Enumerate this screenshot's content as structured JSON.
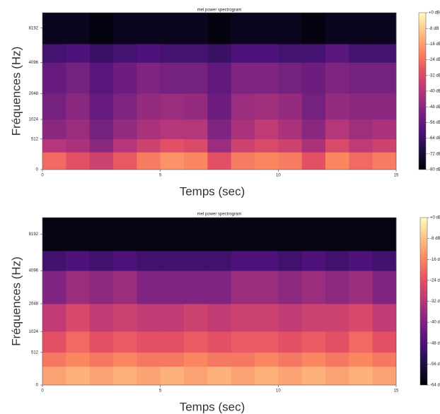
{
  "chart_data": [
    {
      "type": "heatmap",
      "title": "mel power spectrogram",
      "xlabel": "Temps (sec)",
      "ylabel": "Fréquences (Hz)",
      "x": [
        0,
        1,
        2,
        3,
        4,
        5,
        6,
        7,
        8,
        9,
        10,
        11,
        12,
        13,
        14,
        15
      ],
      "y": [
        0,
        256,
        512,
        1024,
        2048,
        4096,
        6000,
        11025
      ],
      "values": [
        [
          -25,
          -30,
          -35,
          -28,
          -22,
          -18,
          -20,
          -30,
          -22,
          -20,
          -22,
          -30,
          -20,
          -25,
          -22
        ],
        [
          -40,
          -42,
          -48,
          -40,
          -35,
          -30,
          -32,
          -45,
          -35,
          -32,
          -35,
          -42,
          -32,
          -38,
          -35
        ],
        [
          -48,
          -45,
          -52,
          -46,
          -42,
          -40,
          -40,
          -50,
          -42,
          -38,
          -42,
          -48,
          -40,
          -44,
          -42
        ],
        [
          -52,
          -48,
          -55,
          -50,
          -46,
          -45,
          -46,
          -54,
          -45,
          -44,
          -46,
          -52,
          -46,
          -48,
          -48
        ],
        [
          -55,
          -52,
          -58,
          -54,
          -50,
          -52,
          -52,
          -56,
          -50,
          -50,
          -52,
          -54,
          -50,
          -52,
          -52
        ],
        [
          -62,
          -60,
          -64,
          -62,
          -60,
          -62,
          -62,
          -64,
          -60,
          -60,
          -62,
          -62,
          -58,
          -62,
          -62
        ],
        [
          -76,
          -76,
          -78,
          -76,
          -76,
          -76,
          -76,
          -78,
          -76,
          -76,
          -76,
          -78,
          -76,
          -76,
          -76
        ]
      ],
      "xlim": [
        0,
        15
      ],
      "xticks": [
        0,
        5,
        10,
        15
      ],
      "ylim": [
        0,
        11025
      ],
      "yticks": [
        0,
        512,
        1024,
        2048,
        4096,
        8192
      ],
      "yscale": "mel",
      "colormap": "magma",
      "colorbar": {
        "lim": [
          -80,
          0
        ],
        "ticks": [
          {
            "value": 0,
            "label": "+0 dB"
          },
          {
            "value": -8,
            "label": "-8 dB"
          },
          {
            "value": -16,
            "label": "-16 dB"
          },
          {
            "value": -24,
            "label": "-24 dB"
          },
          {
            "value": -32,
            "label": "-32 dB"
          },
          {
            "value": -40,
            "label": "-40 dB"
          },
          {
            "value": -48,
            "label": "-48 dB"
          },
          {
            "value": -56,
            "label": "-56 dB"
          },
          {
            "value": -64,
            "label": "-64 dB"
          },
          {
            "value": -72,
            "label": "-72 dB"
          },
          {
            "value": -80,
            "label": "-80 dB"
          }
        ]
      }
    },
    {
      "type": "heatmap",
      "title": "mel power spectrogram",
      "xlabel": "Temps (sec)",
      "ylabel": "Fréquences (Hz)",
      "x": [
        0,
        1,
        2,
        3,
        4,
        5,
        6,
        7,
        8,
        9,
        10,
        11,
        12,
        13,
        14,
        15
      ],
      "y": [
        0,
        256,
        512,
        1024,
        2048,
        4096,
        6000,
        11025
      ],
      "values": [
        [
          -12,
          -10,
          -12,
          -10,
          -12,
          -10,
          -12,
          -10,
          -12,
          -10,
          -12,
          -10,
          -12,
          -10,
          -12
        ],
        [
          -18,
          -16,
          -18,
          -16,
          -18,
          -18,
          -16,
          -18,
          -18,
          -16,
          -18,
          -16,
          -18,
          -16,
          -18
        ],
        [
          -24,
          -20,
          -24,
          -22,
          -24,
          -24,
          -22,
          -24,
          -22,
          -22,
          -24,
          -22,
          -24,
          -20,
          -24
        ],
        [
          -30,
          -26,
          -30,
          -28,
          -30,
          -30,
          -28,
          -30,
          -28,
          -28,
          -30,
          -28,
          -28,
          -26,
          -30
        ],
        [
          -40,
          -36,
          -38,
          -36,
          -40,
          -40,
          -40,
          -40,
          -36,
          -36,
          -38,
          -36,
          -38,
          -36,
          -40
        ],
        [
          -50,
          -48,
          -50,
          -48,
          -50,
          -50,
          -50,
          -50,
          -48,
          -48,
          -50,
          -48,
          -50,
          -48,
          -50
        ],
        [
          -62,
          -62,
          -62,
          -62,
          -62,
          -62,
          -62,
          -62,
          -62,
          -62,
          -62,
          -62,
          -62,
          -62,
          -62
        ]
      ],
      "xlim": [
        0,
        15
      ],
      "xticks": [
        0,
        5,
        10,
        15
      ],
      "ylim": [
        0,
        11025
      ],
      "yticks": [
        0,
        512,
        1024,
        2048,
        4096,
        8192
      ],
      "yscale": "mel",
      "colormap": "magma",
      "colorbar": {
        "lim": [
          -64,
          0
        ],
        "ticks": [
          {
            "value": 0,
            "label": "+0 dB"
          },
          {
            "value": -8,
            "label": "-8 dB"
          },
          {
            "value": -16,
            "label": "-16 dB"
          },
          {
            "value": -24,
            "label": "-24 dB"
          },
          {
            "value": -32,
            "label": "-32 dB"
          },
          {
            "value": -40,
            "label": "-40 dB"
          },
          {
            "value": -48,
            "label": "-48 dB"
          },
          {
            "value": -56,
            "label": "-56 dB"
          },
          {
            "value": -64,
            "label": "-64 dB"
          }
        ]
      }
    }
  ]
}
